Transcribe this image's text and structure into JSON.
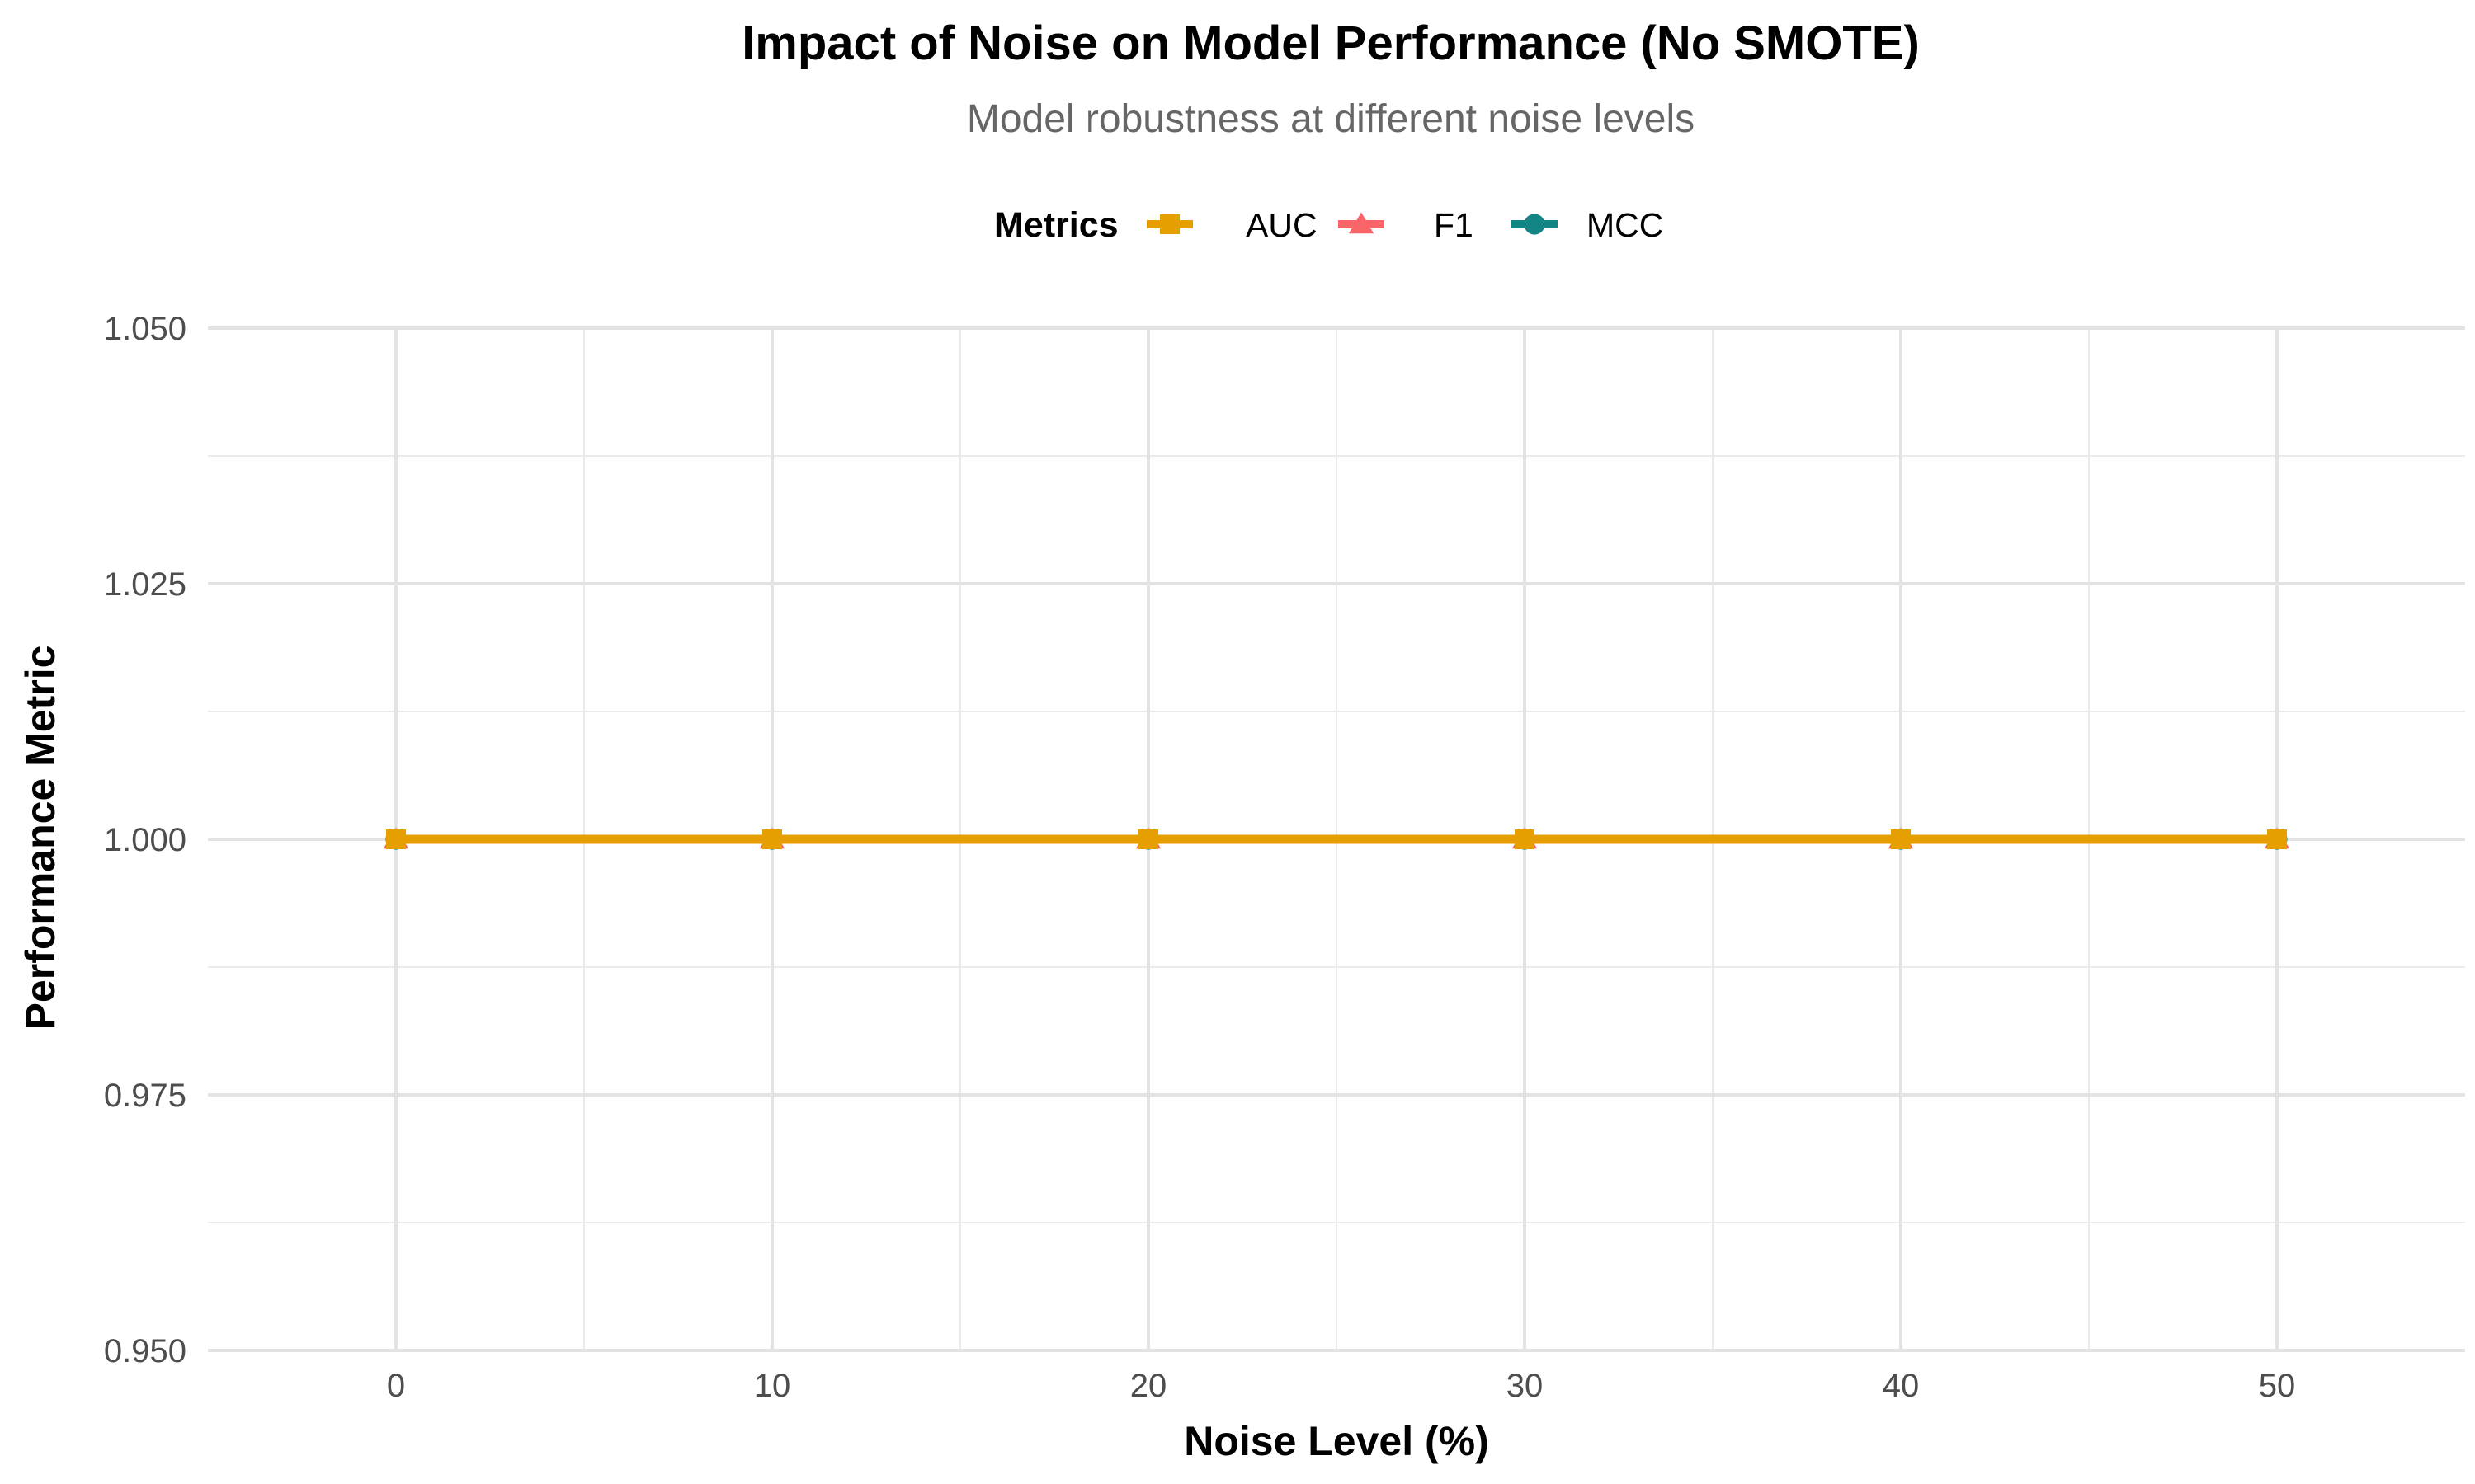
{
  "chart_data": {
    "type": "line",
    "title": "Impact of Noise on Model Performance (No SMOTE)",
    "subtitle": "Model robustness at different noise levels",
    "xlabel": "Noise Level (%)",
    "ylabel": "Performance Metric",
    "x": [
      0,
      10,
      20,
      30,
      40,
      50
    ],
    "xlim": [
      -5,
      55
    ],
    "ylim": [
      0.95,
      1.05
    ],
    "x_ticks": [
      0,
      10,
      20,
      30,
      40,
      50
    ],
    "x_tick_labels": [
      "0",
      "10",
      "20",
      "30",
      "40",
      "50"
    ],
    "y_ticks": [
      0.95,
      0.975,
      1.0,
      1.025,
      1.05
    ],
    "y_tick_labels": [
      "0.950",
      "0.975",
      "1.000",
      "1.025",
      "1.050"
    ],
    "grid": true,
    "legend": {
      "title": "Metrics",
      "placement": "top-center"
    },
    "series": [
      {
        "name": "AUC",
        "marker": "square",
        "color": "#E69F00",
        "values": [
          1.0,
          1.0,
          1.0,
          1.0,
          1.0,
          1.0
        ]
      },
      {
        "name": "F1",
        "marker": "triangle",
        "color": "#F8666A",
        "values": [
          1.0,
          1.0,
          1.0,
          1.0,
          1.0,
          1.0
        ]
      },
      {
        "name": "MCC",
        "marker": "circle",
        "color": "#138585",
        "values": [
          1.0,
          1.0,
          1.0,
          1.0,
          1.0,
          1.0
        ]
      }
    ]
  }
}
